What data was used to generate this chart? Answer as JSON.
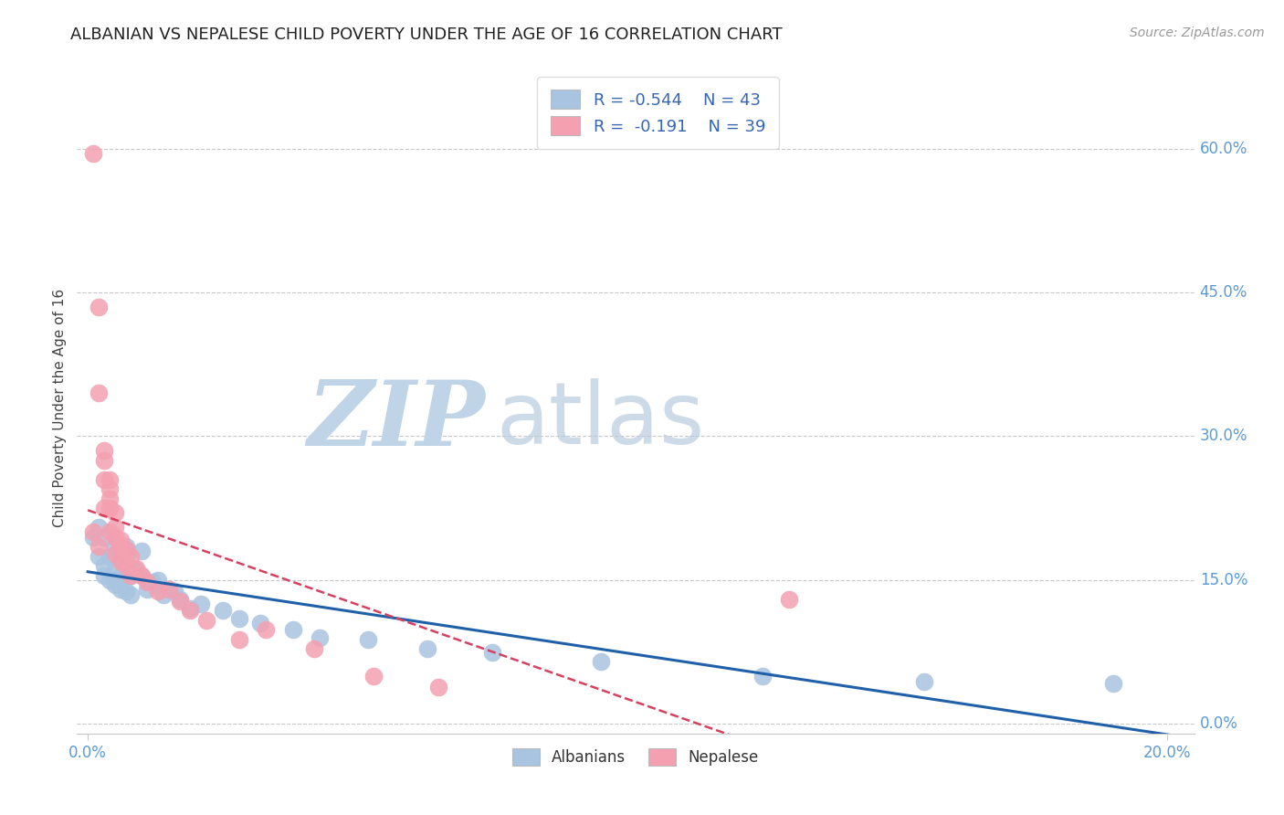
{
  "title": "ALBANIAN VS NEPALESE CHILD POVERTY UNDER THE AGE OF 16 CORRELATION CHART",
  "source": "Source: ZipAtlas.com",
  "ylabel": "Child Poverty Under the Age of 16",
  "xlim": [
    -0.002,
    0.205
  ],
  "ylim": [
    -0.01,
    0.67
  ],
  "yticks": [
    0.0,
    0.15,
    0.3,
    0.45,
    0.6
  ],
  "ytick_labels": [
    "0.0%",
    "15.0%",
    "30.0%",
    "45.0%",
    "60.0%"
  ],
  "xtick_left_label": "0.0%",
  "xtick_right_label": "20.0%",
  "xtick_left_val": 0.0,
  "xtick_right_val": 0.2,
  "legend_labels_bottom": [
    "Albanians",
    "Nepalese"
  ],
  "albanian_R": "-0.544",
  "albanian_N": "43",
  "nepalese_R": "-0.191",
  "nepalese_N": "39",
  "albanian_color": "#a8c4e0",
  "nepalese_color": "#f4a0b0",
  "albanian_line_color": "#2060a8",
  "nepalese_line_color": "#d84060",
  "background_color": "#ffffff",
  "grid_color": "#c8c8c8",
  "title_color": "#222222",
  "tick_color": "#5b9bd5",
  "ylabel_color": "#444444",
  "watermark_zip_color": "#c0d4e8",
  "watermark_atlas_color": "#b8cce0",
  "albanian_x": [
    0.001,
    0.002,
    0.002,
    0.003,
    0.003,
    0.003,
    0.004,
    0.004,
    0.005,
    0.005,
    0.005,
    0.006,
    0.006,
    0.006,
    0.007,
    0.007,
    0.007,
    0.008,
    0.008,
    0.009,
    0.01,
    0.01,
    0.011,
    0.012,
    0.013,
    0.014,
    0.015,
    0.016,
    0.017,
    0.019,
    0.021,
    0.025,
    0.028,
    0.032,
    0.038,
    0.043,
    0.052,
    0.063,
    0.075,
    0.095,
    0.125,
    0.155,
    0.19
  ],
  "albanian_y": [
    0.195,
    0.205,
    0.175,
    0.195,
    0.165,
    0.155,
    0.175,
    0.15,
    0.185,
    0.16,
    0.145,
    0.155,
    0.15,
    0.14,
    0.185,
    0.175,
    0.138,
    0.155,
    0.135,
    0.16,
    0.18,
    0.155,
    0.14,
    0.148,
    0.15,
    0.135,
    0.14,
    0.138,
    0.13,
    0.12,
    0.125,
    0.118,
    0.11,
    0.105,
    0.098,
    0.09,
    0.088,
    0.078,
    0.075,
    0.065,
    0.05,
    0.044,
    0.042
  ],
  "nepalese_x": [
    0.001,
    0.001,
    0.002,
    0.002,
    0.002,
    0.003,
    0.003,
    0.003,
    0.003,
    0.004,
    0.004,
    0.004,
    0.004,
    0.004,
    0.005,
    0.005,
    0.005,
    0.005,
    0.006,
    0.006,
    0.006,
    0.007,
    0.007,
    0.008,
    0.008,
    0.009,
    0.01,
    0.011,
    0.013,
    0.015,
    0.017,
    0.019,
    0.022,
    0.028,
    0.033,
    0.042,
    0.053,
    0.065,
    0.13
  ],
  "nepalese_y": [
    0.595,
    0.2,
    0.435,
    0.345,
    0.185,
    0.285,
    0.275,
    0.255,
    0.225,
    0.255,
    0.245,
    0.235,
    0.225,
    0.2,
    0.22,
    0.205,
    0.195,
    0.178,
    0.192,
    0.185,
    0.17,
    0.182,
    0.165,
    0.175,
    0.155,
    0.162,
    0.155,
    0.148,
    0.138,
    0.14,
    0.128,
    0.118,
    0.108,
    0.088,
    0.098,
    0.078,
    0.05,
    0.038,
    0.13
  ]
}
